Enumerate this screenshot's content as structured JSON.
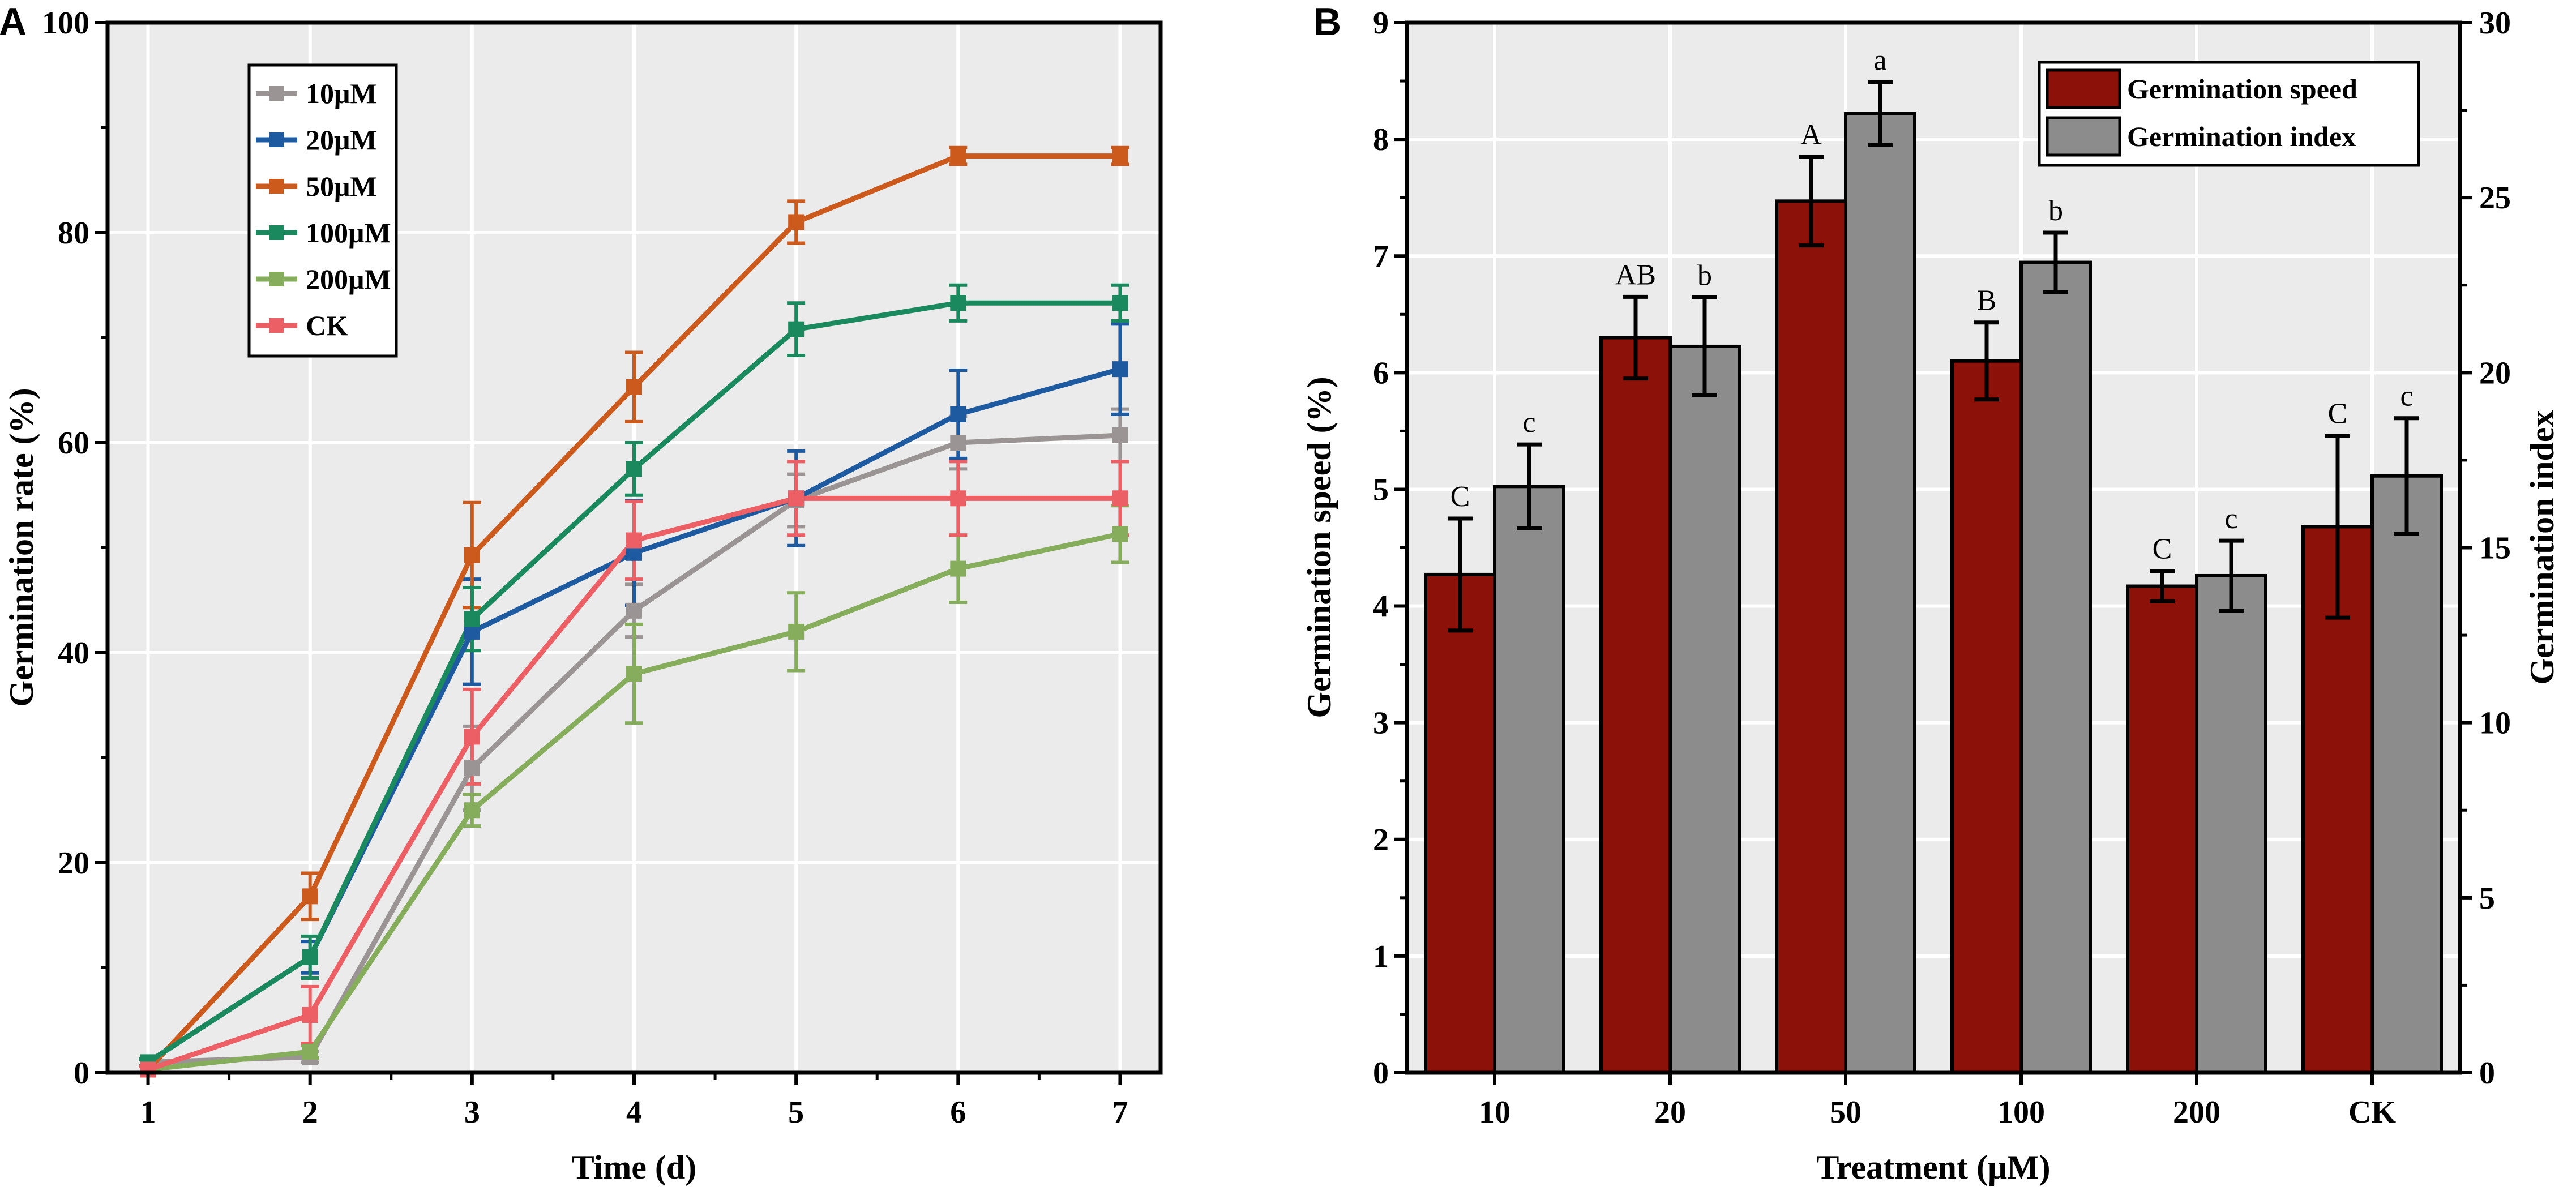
{
  "chart_data": [
    {
      "type": "line",
      "panel_label": "A",
      "xlabel": "Time (d)",
      "ylabel": "Germination rate (%)",
      "xlim": [
        0.75,
        7.25
      ],
      "ylim": [
        0,
        100
      ],
      "x": [
        1,
        2,
        3,
        4,
        5,
        6,
        7
      ],
      "xticks": [
        "1",
        "2",
        "3",
        "4",
        "5",
        "6",
        "7"
      ],
      "yticks": [
        "0",
        "20",
        "40",
        "60",
        "80",
        "100"
      ],
      "legend_position": "top-left",
      "grid": true,
      "series": [
        {
          "name": "10μM",
          "color": "#9b9494",
          "values": [
            1,
            1.5,
            29,
            44,
            54.5,
            60,
            60.7
          ],
          "errors": [
            0.3,
            0.5,
            4,
            2.5,
            2.5,
            2.5,
            2.5
          ]
        },
        {
          "name": "20μM",
          "color": "#1e5aa0",
          "values": [
            1,
            11,
            42,
            49.5,
            54.7,
            62.7,
            67
          ],
          "errors": [
            0.3,
            1.5,
            5,
            5,
            4.5,
            4.2,
            4.3
          ]
        },
        {
          "name": "50μM",
          "color": "#cc5a1c",
          "values": [
            0.3,
            16.8,
            49.3,
            65.3,
            81,
            87.3,
            87.3
          ],
          "errors": [
            0.3,
            2.2,
            5,
            3.3,
            2,
            0.8,
            0.8
          ]
        },
        {
          "name": "100μM",
          "color": "#1a8a5e",
          "values": [
            1,
            11,
            43.2,
            57.5,
            70.8,
            73.3,
            73.3
          ],
          "errors": [
            0.3,
            2,
            3,
            2.5,
            2.5,
            1.7,
            1.7
          ]
        },
        {
          "name": "200μM",
          "color": "#86ad5c",
          "values": [
            0.3,
            2,
            25,
            38,
            42,
            48,
            51.3
          ],
          "errors": [
            0.3,
            0.6,
            1.5,
            4.7,
            3.7,
            3.2,
            2.7
          ]
        },
        {
          "name": "CK",
          "color": "#ec5f64",
          "values": [
            0.3,
            5.5,
            32,
            50.7,
            54.7,
            54.7,
            54.7
          ],
          "errors": [
            0.3,
            2.7,
            4.5,
            3.7,
            3.5,
            3.5,
            3.5
          ]
        }
      ]
    },
    {
      "type": "bar",
      "panel_label": "B",
      "xlabel": "Treatment (μM)",
      "ylabel": "Germination speed (%)",
      "y2label": "Germination index",
      "categories": [
        "10",
        "20",
        "50",
        "100",
        "200",
        "CK"
      ],
      "ylim": [
        0,
        9
      ],
      "y2lim": [
        0,
        30
      ],
      "yticks": [
        "0",
        "1",
        "2",
        "3",
        "4",
        "5",
        "6",
        "7",
        "8",
        "9"
      ],
      "y2ticks": [
        "0",
        "5",
        "10",
        "15",
        "20",
        "25",
        "30"
      ],
      "legend_position": "top-right",
      "grid": true,
      "series": [
        {
          "name": "Germination speed",
          "axis": "left",
          "color": "#8b1109",
          "values": [
            4.27,
            6.3,
            7.47,
            6.1,
            4.17,
            4.68
          ],
          "errors": [
            0.48,
            0.35,
            0.38,
            0.33,
            0.13,
            0.78
          ],
          "letters": [
            "C",
            "AB",
            "A",
            "B",
            "C",
            "C"
          ]
        },
        {
          "name": "Germination index",
          "axis": "right",
          "color": "#8c8c8c",
          "values": [
            16.75,
            20.75,
            27.4,
            23.15,
            14.2,
            17.05
          ],
          "errors": [
            1.2,
            1.4,
            0.9,
            0.85,
            1.0,
            1.65
          ],
          "letters": [
            "c",
            "b",
            "a",
            "b",
            "c",
            "c"
          ]
        }
      ]
    }
  ]
}
